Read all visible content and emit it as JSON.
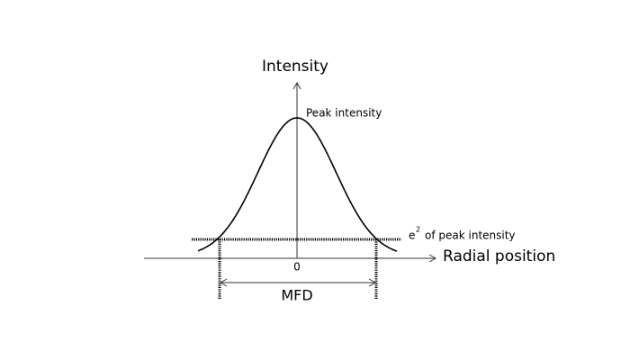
{
  "labels": {
    "y_axis": "Intensity",
    "x_axis": "Radial position",
    "peak": "Peak intensity",
    "threshold_base": "e",
    "threshold_exp": "2",
    "threshold_rest": "of peak intensity",
    "origin": "0",
    "width": "MFD"
  }
}
